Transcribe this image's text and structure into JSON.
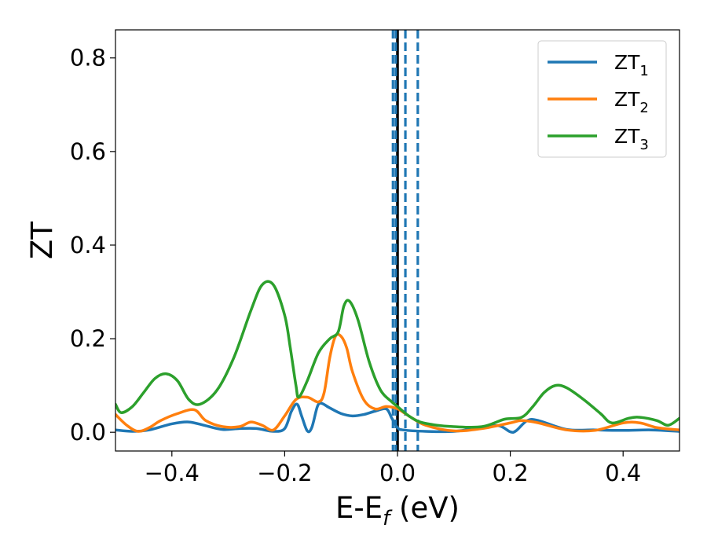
{
  "chart_data": {
    "type": "line",
    "xlabel": "E-E",
    "xlabel_sub": "f",
    "xlabel_unit": " (eV)",
    "ylabel": "ZT",
    "xlim": [
      -0.5,
      0.5
    ],
    "ylim": [
      -0.04,
      0.86
    ],
    "x_ticks": [
      -0.4,
      -0.2,
      0.0,
      0.2,
      0.4
    ],
    "x_tick_labels": [
      "−0.4",
      "−0.2",
      "0.0",
      "0.2",
      "0.4"
    ],
    "y_ticks": [
      0.0,
      0.2,
      0.4,
      0.6,
      0.8
    ],
    "y_tick_labels": [
      "0.0",
      "0.2",
      "0.4",
      "0.6",
      "0.8"
    ],
    "grid": false,
    "legend_position": "top-right",
    "legend": [
      {
        "base": "ZT",
        "sub": "1",
        "color": "#1f77b4"
      },
      {
        "base": "ZT",
        "sub": "2",
        "color": "#ff7f0e"
      },
      {
        "base": "ZT",
        "sub": "3",
        "color": "#2ca02c"
      }
    ],
    "vertical_lines": [
      {
        "x": 0.0,
        "style": "solid",
        "color": "#000000"
      },
      {
        "x": -0.008,
        "style": "dashed",
        "color": "#1f77b4"
      },
      {
        "x": -0.003,
        "style": "dashed",
        "color": "#1f77b4"
      },
      {
        "x": 0.014,
        "style": "dashed",
        "color": "#1f77b4"
      },
      {
        "x": 0.036,
        "style": "dashed",
        "color": "#1f77b4"
      }
    ],
    "series": [
      {
        "color": "#1f77b4",
        "points": [
          [
            -0.5,
            0.005
          ],
          [
            -0.47,
            0.002
          ],
          [
            -0.44,
            0.005
          ],
          [
            -0.4,
            0.018
          ],
          [
            -0.37,
            0.022
          ],
          [
            -0.34,
            0.014
          ],
          [
            -0.31,
            0.006
          ],
          [
            -0.28,
            0.008
          ],
          [
            -0.25,
            0.008
          ],
          [
            -0.22,
            0.002
          ],
          [
            -0.2,
            0.008
          ],
          [
            -0.188,
            0.045
          ],
          [
            -0.178,
            0.06
          ],
          [
            -0.17,
            0.035
          ],
          [
            -0.16,
            0.003
          ],
          [
            -0.152,
            0.01
          ],
          [
            -0.142,
            0.055
          ],
          [
            -0.135,
            0.062
          ],
          [
            -0.12,
            0.052
          ],
          [
            -0.1,
            0.04
          ],
          [
            -0.08,
            0.035
          ],
          [
            -0.06,
            0.038
          ],
          [
            -0.04,
            0.045
          ],
          [
            -0.02,
            0.05
          ],
          [
            -0.01,
            0.03
          ],
          [
            0.0,
            0.01
          ],
          [
            0.01,
            0.005
          ],
          [
            0.05,
            0.002
          ],
          [
            0.1,
            0.002
          ],
          [
            0.15,
            0.01
          ],
          [
            0.18,
            0.014
          ],
          [
            0.2,
            0.001
          ],
          [
            0.21,
            0.003
          ],
          [
            0.23,
            0.025
          ],
          [
            0.25,
            0.025
          ],
          [
            0.3,
            0.006
          ],
          [
            0.35,
            0.005
          ],
          [
            0.4,
            0.004
          ],
          [
            0.45,
            0.005
          ],
          [
            0.5,
            0.002
          ]
        ]
      },
      {
        "color": "#ff7f0e",
        "points": [
          [
            -0.5,
            0.038
          ],
          [
            -0.48,
            0.015
          ],
          [
            -0.46,
            0.002
          ],
          [
            -0.44,
            0.01
          ],
          [
            -0.42,
            0.025
          ],
          [
            -0.39,
            0.04
          ],
          [
            -0.36,
            0.048
          ],
          [
            -0.34,
            0.025
          ],
          [
            -0.31,
            0.012
          ],
          [
            -0.28,
            0.012
          ],
          [
            -0.26,
            0.022
          ],
          [
            -0.24,
            0.015
          ],
          [
            -0.22,
            0.005
          ],
          [
            -0.2,
            0.035
          ],
          [
            -0.18,
            0.07
          ],
          [
            -0.16,
            0.075
          ],
          [
            -0.14,
            0.065
          ],
          [
            -0.13,
            0.085
          ],
          [
            -0.12,
            0.16
          ],
          [
            -0.11,
            0.205
          ],
          [
            -0.1,
            0.205
          ],
          [
            -0.09,
            0.18
          ],
          [
            -0.08,
            0.13
          ],
          [
            -0.06,
            0.07
          ],
          [
            -0.04,
            0.05
          ],
          [
            -0.02,
            0.055
          ],
          [
            0.0,
            0.05
          ],
          [
            0.02,
            0.035
          ],
          [
            0.05,
            0.015
          ],
          [
            0.1,
            0.003
          ],
          [
            0.15,
            0.008
          ],
          [
            0.2,
            0.02
          ],
          [
            0.22,
            0.025
          ],
          [
            0.25,
            0.02
          ],
          [
            0.3,
            0.005
          ],
          [
            0.35,
            0.004
          ],
          [
            0.4,
            0.02
          ],
          [
            0.43,
            0.02
          ],
          [
            0.46,
            0.01
          ],
          [
            0.5,
            0.005
          ]
        ]
      },
      {
        "color": "#2ca02c",
        "points": [
          [
            -0.5,
            0.06
          ],
          [
            -0.49,
            0.042
          ],
          [
            -0.47,
            0.055
          ],
          [
            -0.45,
            0.085
          ],
          [
            -0.43,
            0.115
          ],
          [
            -0.41,
            0.125
          ],
          [
            -0.39,
            0.11
          ],
          [
            -0.37,
            0.07
          ],
          [
            -0.35,
            0.06
          ],
          [
            -0.32,
            0.09
          ],
          [
            -0.29,
            0.16
          ],
          [
            -0.26,
            0.26
          ],
          [
            -0.24,
            0.315
          ],
          [
            -0.22,
            0.315
          ],
          [
            -0.2,
            0.25
          ],
          [
            -0.19,
            0.18
          ],
          [
            -0.18,
            0.1
          ],
          [
            -0.175,
            0.075
          ],
          [
            -0.16,
            0.11
          ],
          [
            -0.14,
            0.17
          ],
          [
            -0.12,
            0.2
          ],
          [
            -0.105,
            0.215
          ],
          [
            -0.095,
            0.27
          ],
          [
            -0.085,
            0.28
          ],
          [
            -0.07,
            0.24
          ],
          [
            -0.05,
            0.15
          ],
          [
            -0.03,
            0.09
          ],
          [
            -0.01,
            0.065
          ],
          [
            0.0,
            0.055
          ],
          [
            0.02,
            0.035
          ],
          [
            0.04,
            0.022
          ],
          [
            0.07,
            0.015
          ],
          [
            0.1,
            0.012
          ],
          [
            0.15,
            0.012
          ],
          [
            0.19,
            0.028
          ],
          [
            0.22,
            0.032
          ],
          [
            0.24,
            0.055
          ],
          [
            0.26,
            0.085
          ],
          [
            0.28,
            0.1
          ],
          [
            0.3,
            0.095
          ],
          [
            0.33,
            0.07
          ],
          [
            0.36,
            0.04
          ],
          [
            0.38,
            0.02
          ],
          [
            0.41,
            0.03
          ],
          [
            0.43,
            0.032
          ],
          [
            0.46,
            0.025
          ],
          [
            0.48,
            0.015
          ],
          [
            0.5,
            0.03
          ]
        ]
      }
    ]
  }
}
